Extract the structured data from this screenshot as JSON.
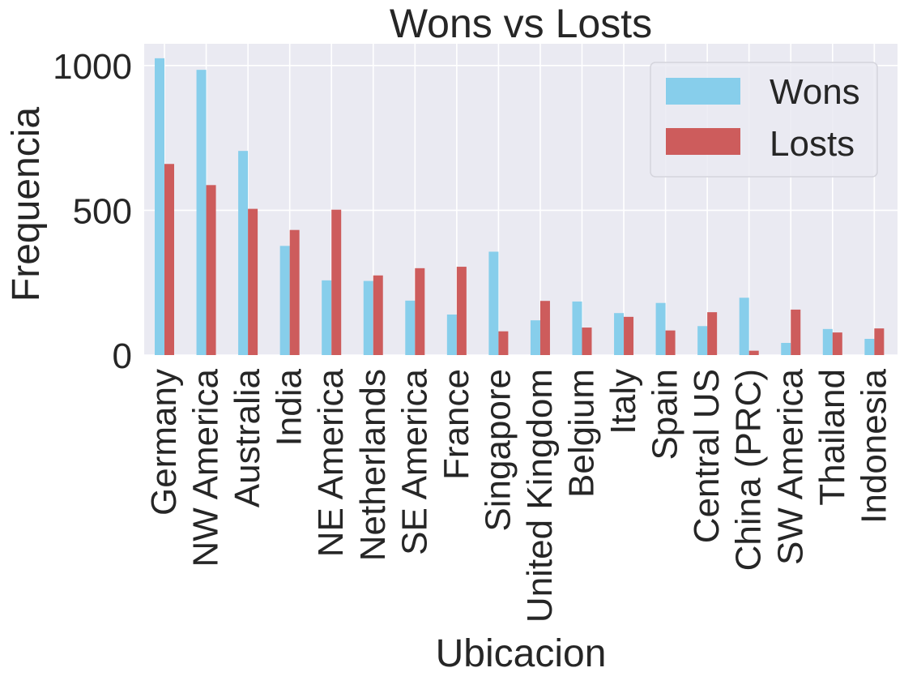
{
  "chart_data": {
    "type": "bar",
    "title": "Wons vs Losts",
    "xlabel": "Ubicacion",
    "ylabel": "Frequencia",
    "ylim": [
      0,
      1075
    ],
    "yticks": [
      0,
      500,
      1000
    ],
    "grid": true,
    "legend_position": "top-right",
    "categories": [
      "Germany",
      "NW America",
      "Australia",
      "India",
      "NE America",
      "Netherlands",
      "SE America",
      "France",
      "Singapore",
      "United Kingdom",
      "Belgium",
      "Italy",
      "Spain",
      "Central US",
      "China (PRC)",
      "SW America",
      "Thailand",
      "Indonesia"
    ],
    "series": [
      {
        "name": "Wons",
        "color": "#87ceeb",
        "values": [
          1025,
          985,
          705,
          377,
          258,
          256,
          188,
          140,
          357,
          120,
          185,
          145,
          180,
          100,
          198,
          42,
          90,
          56
        ]
      },
      {
        "name": "Losts",
        "color": "#cd5c5c",
        "values": [
          660,
          587,
          505,
          432,
          502,
          275,
          300,
          305,
          82,
          187,
          95,
          132,
          85,
          148,
          15,
          157,
          78,
          92
        ]
      }
    ]
  }
}
